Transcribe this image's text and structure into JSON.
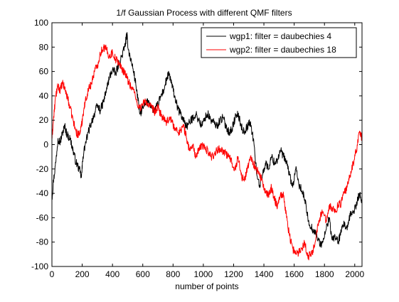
{
  "chart_data": {
    "type": "line",
    "title": "1/f Gaussian Process with different QMF filters",
    "xlabel": "number of points",
    "ylabel": "",
    "xlim": [
      0,
      2048
    ],
    "ylim": [
      -100,
      100
    ],
    "xticks": [
      0,
      200,
      400,
      600,
      800,
      1000,
      1200,
      1400,
      1600,
      1800,
      2000
    ],
    "yticks": [
      -100,
      -80,
      -60,
      -40,
      -20,
      0,
      20,
      40,
      60,
      80,
      100
    ],
    "grid": false,
    "legend_position": "top-right",
    "series": [
      {
        "name": "wgp1: filter = daubechies 4",
        "color": "#000000",
        "x": [
          0,
          10,
          25,
          40,
          55,
          70,
          85,
          100,
          120,
          140,
          160,
          180,
          195,
          205,
          220,
          240,
          260,
          280,
          300,
          320,
          340,
          360,
          380,
          400,
          420,
          440,
          460,
          480,
          495,
          505,
          520,
          540,
          560,
          580,
          600,
          620,
          640,
          660,
          680,
          700,
          720,
          740,
          760,
          775,
          790,
          810,
          830,
          850,
          870,
          890,
          910,
          930,
          950,
          970,
          990,
          1010,
          1030,
          1050,
          1070,
          1090,
          1110,
          1130,
          1150,
          1170,
          1190,
          1210,
          1230,
          1250,
          1270,
          1290,
          1310,
          1330,
          1350,
          1370,
          1390,
          1410,
          1430,
          1450,
          1470,
          1490,
          1510,
          1530,
          1550,
          1570,
          1590,
          1610,
          1630,
          1650,
          1670,
          1690,
          1710,
          1730,
          1750,
          1770,
          1790,
          1810,
          1830,
          1850,
          1870,
          1890,
          1910,
          1930,
          1950,
          1970,
          1990,
          2010,
          2030,
          2048
        ],
        "y": [
          -45,
          -30,
          -15,
          5,
          2,
          10,
          15,
          8,
          5,
          -5,
          -15,
          -20,
          -27,
          -10,
          0,
          10,
          18,
          25,
          32,
          28,
          35,
          45,
          55,
          62,
          58,
          65,
          72,
          80,
          90,
          78,
          70,
          60,
          45,
          25,
          30,
          33,
          36,
          30,
          28,
          33,
          40,
          45,
          55,
          58,
          50,
          40,
          30,
          25,
          20,
          15,
          18,
          22,
          25,
          20,
          15,
          22,
          25,
          20,
          18,
          15,
          20,
          22,
          15,
          10,
          13,
          22,
          25,
          15,
          10,
          15,
          18,
          5,
          -20,
          -35,
          -25,
          -15,
          -20,
          -10,
          -15,
          -12,
          -5,
          -10,
          -15,
          -25,
          -35,
          -20,
          -32,
          -38,
          -45,
          -60,
          -68,
          -70,
          -75,
          -82,
          -80,
          -70,
          -60,
          -78,
          -75,
          -80,
          -72,
          -65,
          -70,
          -58,
          -55,
          -50,
          -40,
          -47
        ]
      },
      {
        "name": "wgp2: filter = daubechies 18",
        "color": "#ff0000",
        "x": [
          0,
          10,
          25,
          40,
          55,
          70,
          85,
          100,
          120,
          140,
          160,
          180,
          195,
          205,
          220,
          240,
          260,
          280,
          300,
          320,
          340,
          360,
          380,
          400,
          420,
          440,
          460,
          480,
          495,
          505,
          520,
          540,
          560,
          580,
          600,
          620,
          640,
          660,
          680,
          700,
          720,
          740,
          760,
          775,
          790,
          810,
          830,
          850,
          870,
          890,
          910,
          930,
          950,
          970,
          990,
          1010,
          1030,
          1050,
          1070,
          1090,
          1110,
          1130,
          1150,
          1170,
          1190,
          1210,
          1230,
          1250,
          1270,
          1290,
          1310,
          1330,
          1350,
          1370,
          1390,
          1410,
          1430,
          1450,
          1470,
          1490,
          1510,
          1530,
          1550,
          1570,
          1590,
          1610,
          1630,
          1650,
          1670,
          1690,
          1710,
          1730,
          1750,
          1770,
          1790,
          1810,
          1830,
          1850,
          1870,
          1890,
          1910,
          1930,
          1950,
          1970,
          1990,
          2010,
          2030,
          2048
        ],
        "y": [
          5,
          20,
          40,
          48,
          45,
          50,
          46,
          40,
          30,
          20,
          10,
          8,
          15,
          25,
          35,
          45,
          50,
          60,
          65,
          75,
          80,
          78,
          72,
          76,
          70,
          68,
          62,
          60,
          55,
          52,
          48,
          45,
          35,
          30,
          33,
          36,
          32,
          30,
          27,
          30,
          25,
          20,
          18,
          22,
          20,
          14,
          10,
          12,
          15,
          5,
          -5,
          0,
          -10,
          -5,
          0,
          -3,
          -5,
          -10,
          -8,
          -5,
          -3,
          -5,
          -8,
          -10,
          -15,
          -20,
          -10,
          -25,
          -30,
          -20,
          -10,
          -15,
          -20,
          -25,
          -30,
          -40,
          -42,
          -35,
          -45,
          -50,
          -40,
          -42,
          -60,
          -75,
          -85,
          -90,
          -88,
          -85,
          -80,
          -92,
          -90,
          -85,
          -70,
          -60,
          -55,
          -62,
          -50,
          -52,
          -55,
          -50,
          -48,
          -40,
          -35,
          -25,
          -15,
          -5,
          10,
          5
        ]
      }
    ]
  }
}
